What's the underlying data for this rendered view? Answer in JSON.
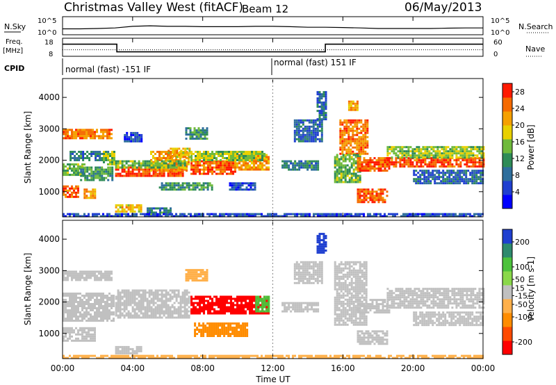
{
  "header": {
    "radar": "Christmas Valley West (fitACF)",
    "beam": "Beam 12",
    "date": "06/May/2013"
  },
  "top_panel": {
    "left_label": "N.Sky",
    "left_ticks": [
      "10^5",
      "10^0"
    ],
    "right_label": "N.Search",
    "right_ticks": [
      "10^5",
      "10^0"
    ]
  },
  "freq_panel": {
    "left_label_1": "Freq.",
    "left_label_2": "[MHz]",
    "left_ticks": [
      "18",
      "8"
    ],
    "right_label": "Nave",
    "right_ticks": [
      "60",
      "0"
    ]
  },
  "cpid": {
    "label": "CPID",
    "segments": [
      "normal (fast) -151 IF",
      "normal (fast) 151 IF"
    ]
  },
  "x_axis": {
    "label": "Time UT",
    "ticks": [
      "00:00",
      "04:00",
      "08:00",
      "12:00",
      "16:00",
      "20:00",
      "00:00"
    ]
  },
  "chart_data": [
    {
      "type": "line",
      "title": "N.Sky / N.Search",
      "x": [
        0,
        1,
        2,
        3,
        4,
        5,
        6,
        7,
        8,
        9,
        10,
        11,
        12,
        13,
        14,
        15,
        16,
        17,
        18,
        19,
        20,
        21,
        22,
        23,
        24
      ],
      "series": [
        {
          "name": "N.Sky",
          "values": [
            30,
            30,
            40,
            60,
            200,
            300,
            200,
            200,
            150,
            150,
            150,
            200,
            200,
            150,
            100,
            100,
            80,
            60,
            40,
            40,
            40,
            40,
            50,
            60,
            60
          ]
        }
      ],
      "ylim": [
        1,
        100000
      ],
      "log_scale": true
    },
    {
      "type": "line",
      "title": "Freq. / Nave",
      "x": [
        0,
        3.1,
        3.1,
        15,
        15,
        24
      ],
      "series": [
        {
          "name": "Freq.",
          "values": [
            15,
            15,
            10,
            10,
            15,
            15
          ]
        }
      ],
      "nave_level": 20,
      "ylim": [
        8,
        18
      ]
    },
    {
      "type": "heatmap",
      "title": "Power",
      "ylabel": "Slant Range [km]",
      "xlabel": "Time UT",
      "xlim": [
        0,
        24
      ],
      "ylim": [
        200,
        4600
      ],
      "yticks": [
        1000,
        2000,
        3000,
        4000
      ],
      "colorbar": {
        "label": "Power [dB]",
        "ticks": [
          4,
          8,
          12,
          16,
          20,
          24,
          28
        ],
        "range": [
          0,
          30
        ]
      },
      "blobs": [
        {
          "t0": 0.0,
          "t1": 2.8,
          "r0": 2700,
          "r1": 3000,
          "v": 24
        },
        {
          "t0": 0.0,
          "t1": 1.2,
          "r0": 1550,
          "r1": 1900,
          "v": 14
        },
        {
          "t0": 0.0,
          "t1": 0.9,
          "r0": 850,
          "r1": 1200,
          "v": 26
        },
        {
          "t0": 1.2,
          "t1": 1.9,
          "r0": 800,
          "r1": 1100,
          "v": 22
        },
        {
          "t0": 1.0,
          "t1": 2.9,
          "r0": 1400,
          "r1": 1800,
          "v": 12
        },
        {
          "t0": 0.4,
          "t1": 2.6,
          "r0": 2000,
          "r1": 2300,
          "v": 10
        },
        {
          "t0": 2.3,
          "t1": 3.0,
          "r0": 1900,
          "r1": 2300,
          "v": 16
        },
        {
          "t0": 3.0,
          "t1": 7.0,
          "r0": 1500,
          "r1": 1800,
          "v": 27
        },
        {
          "t0": 5.0,
          "t1": 7.2,
          "r0": 1700,
          "r1": 2300,
          "v": 22
        },
        {
          "t0": 6.0,
          "t1": 7.3,
          "r0": 2100,
          "r1": 2400,
          "v": 20
        },
        {
          "t0": 3.0,
          "t1": 7.0,
          "r0": 1800,
          "r1": 2000,
          "v": 14
        },
        {
          "t0": 3.5,
          "t1": 4.5,
          "r0": 2600,
          "r1": 2900,
          "v": 6
        },
        {
          "t0": 3.0,
          "t1": 4.5,
          "r0": 350,
          "r1": 600,
          "v": 20
        },
        {
          "t0": 4.8,
          "t1": 6.2,
          "r0": 250,
          "r1": 500,
          "v": 10
        },
        {
          "t0": 7.3,
          "t1": 9.8,
          "r0": 1600,
          "r1": 2000,
          "v": 26
        },
        {
          "t0": 9.8,
          "t1": 11.8,
          "r0": 1700,
          "r1": 2200,
          "v": 22
        },
        {
          "t0": 7.3,
          "t1": 11.5,
          "r0": 2000,
          "r1": 2300,
          "v": 16
        },
        {
          "t0": 7.0,
          "t1": 8.2,
          "r0": 2700,
          "r1": 3050,
          "v": 12
        },
        {
          "t0": 5.5,
          "t1": 8.5,
          "r0": 1050,
          "r1": 1300,
          "v": 12
        },
        {
          "t0": 9.5,
          "t1": 11.0,
          "r0": 1100,
          "r1": 1300,
          "v": 6
        },
        {
          "t0": 12.5,
          "t1": 14.6,
          "r0": 1700,
          "r1": 2000,
          "v": 10
        },
        {
          "t0": 13.2,
          "t1": 14.8,
          "r0": 2600,
          "r1": 3300,
          "v": 8
        },
        {
          "t0": 14.5,
          "t1": 15.0,
          "r0": 3300,
          "r1": 4200,
          "v": 8
        },
        {
          "t0": 15.8,
          "t1": 17.4,
          "r0": 2200,
          "r1": 3300,
          "v": 24
        },
        {
          "t0": 15.5,
          "t1": 17.0,
          "r0": 1300,
          "r1": 2200,
          "v": 14
        },
        {
          "t0": 16.8,
          "t1": 18.6,
          "r0": 1700,
          "r1": 2100,
          "v": 26
        },
        {
          "t0": 18.5,
          "t1": 24.0,
          "r0": 1800,
          "r1": 2100,
          "v": 27
        },
        {
          "t0": 18.5,
          "t1": 24.0,
          "r0": 2100,
          "r1": 2450,
          "v": 16
        },
        {
          "t0": 20.0,
          "t1": 24.0,
          "r0": 1300,
          "r1": 1700,
          "v": 8
        },
        {
          "t0": 16.8,
          "t1": 18.5,
          "r0": 700,
          "r1": 1100,
          "v": 26
        },
        {
          "t0": 16.3,
          "t1": 16.8,
          "r0": 3600,
          "r1": 3900,
          "v": 22
        },
        {
          "t0": 0.0,
          "t1": 24.0,
          "r0": 230,
          "r1": 320,
          "v": 6
        }
      ]
    },
    {
      "type": "heatmap",
      "title": "Velocity",
      "ylabel": "Slant Range [km]",
      "xlabel": "Time UT",
      "xlim": [
        0,
        24
      ],
      "ylim": [
        200,
        4600
      ],
      "yticks": [
        1000,
        2000,
        3000,
        4000
      ],
      "colorbar": {
        "label": "Velocity [m s-1]",
        "ticks": [
          200,
          100,
          50,
          15,
          -15,
          -50,
          -100,
          -200
        ],
        "range": [
          -250,
          250
        ]
      },
      "blobs": [
        {
          "t0": 0.0,
          "t1": 2.8,
          "r0": 2700,
          "r1": 3000,
          "v": 0
        },
        {
          "t0": 0.0,
          "t1": 2.9,
          "r0": 1400,
          "r1": 2300,
          "v": 0
        },
        {
          "t0": 0.0,
          "t1": 1.9,
          "r0": 800,
          "r1": 1200,
          "v": 0
        },
        {
          "t0": 3.0,
          "t1": 7.2,
          "r0": 1500,
          "r1": 2400,
          "v": 0
        },
        {
          "t0": 3.0,
          "t1": 4.5,
          "r0": 350,
          "r1": 600,
          "v": 0
        },
        {
          "t0": 7.3,
          "t1": 11.8,
          "r0": 1650,
          "r1": 2200,
          "v": -200
        },
        {
          "t0": 11.0,
          "t1": 11.8,
          "r0": 1700,
          "r1": 2200,
          "v": 120
        },
        {
          "t0": 7.5,
          "t1": 10.5,
          "r0": 950,
          "r1": 1350,
          "v": -90
        },
        {
          "t0": 7.0,
          "t1": 8.2,
          "r0": 2700,
          "r1": 3050,
          "v": -40
        },
        {
          "t0": 12.5,
          "t1": 14.6,
          "r0": 1700,
          "r1": 2000,
          "v": 0
        },
        {
          "t0": 13.2,
          "t1": 14.8,
          "r0": 2600,
          "r1": 3300,
          "v": 0
        },
        {
          "t0": 14.5,
          "t1": 15.0,
          "r0": 3600,
          "r1": 4200,
          "v": 200
        },
        {
          "t0": 15.5,
          "t1": 17.4,
          "r0": 1300,
          "r1": 3300,
          "v": 0
        },
        {
          "t0": 16.8,
          "t1": 18.6,
          "r0": 1700,
          "r1": 2100,
          "v": 0
        },
        {
          "t0": 18.5,
          "t1": 24.0,
          "r0": 1800,
          "r1": 2450,
          "v": 0
        },
        {
          "t0": 20.0,
          "t1": 24.0,
          "r0": 1300,
          "r1": 1700,
          "v": 0
        },
        {
          "t0": 16.8,
          "t1": 18.5,
          "r0": 700,
          "r1": 1100,
          "v": 0
        },
        {
          "t0": 0.0,
          "t1": 24.0,
          "r0": 230,
          "r1": 320,
          "v": -60
        }
      ]
    }
  ],
  "colors": {
    "power_scale": [
      "#0000ff",
      "#1f3fd0",
      "#2e6e9c",
      "#2e8b57",
      "#6fba3c",
      "#e8d000",
      "#f5a000",
      "#f56a00",
      "#ff1a00"
    ],
    "velocity_scale": [
      "#ff0000",
      "#ff4a00",
      "#ff8c00",
      "#ffb04a",
      "#c0c0c0",
      "#8ad84a",
      "#4cc23c",
      "#2e8a6e",
      "#1f3fd0"
    ],
    "ground_scatter": "#c0c0c0"
  }
}
